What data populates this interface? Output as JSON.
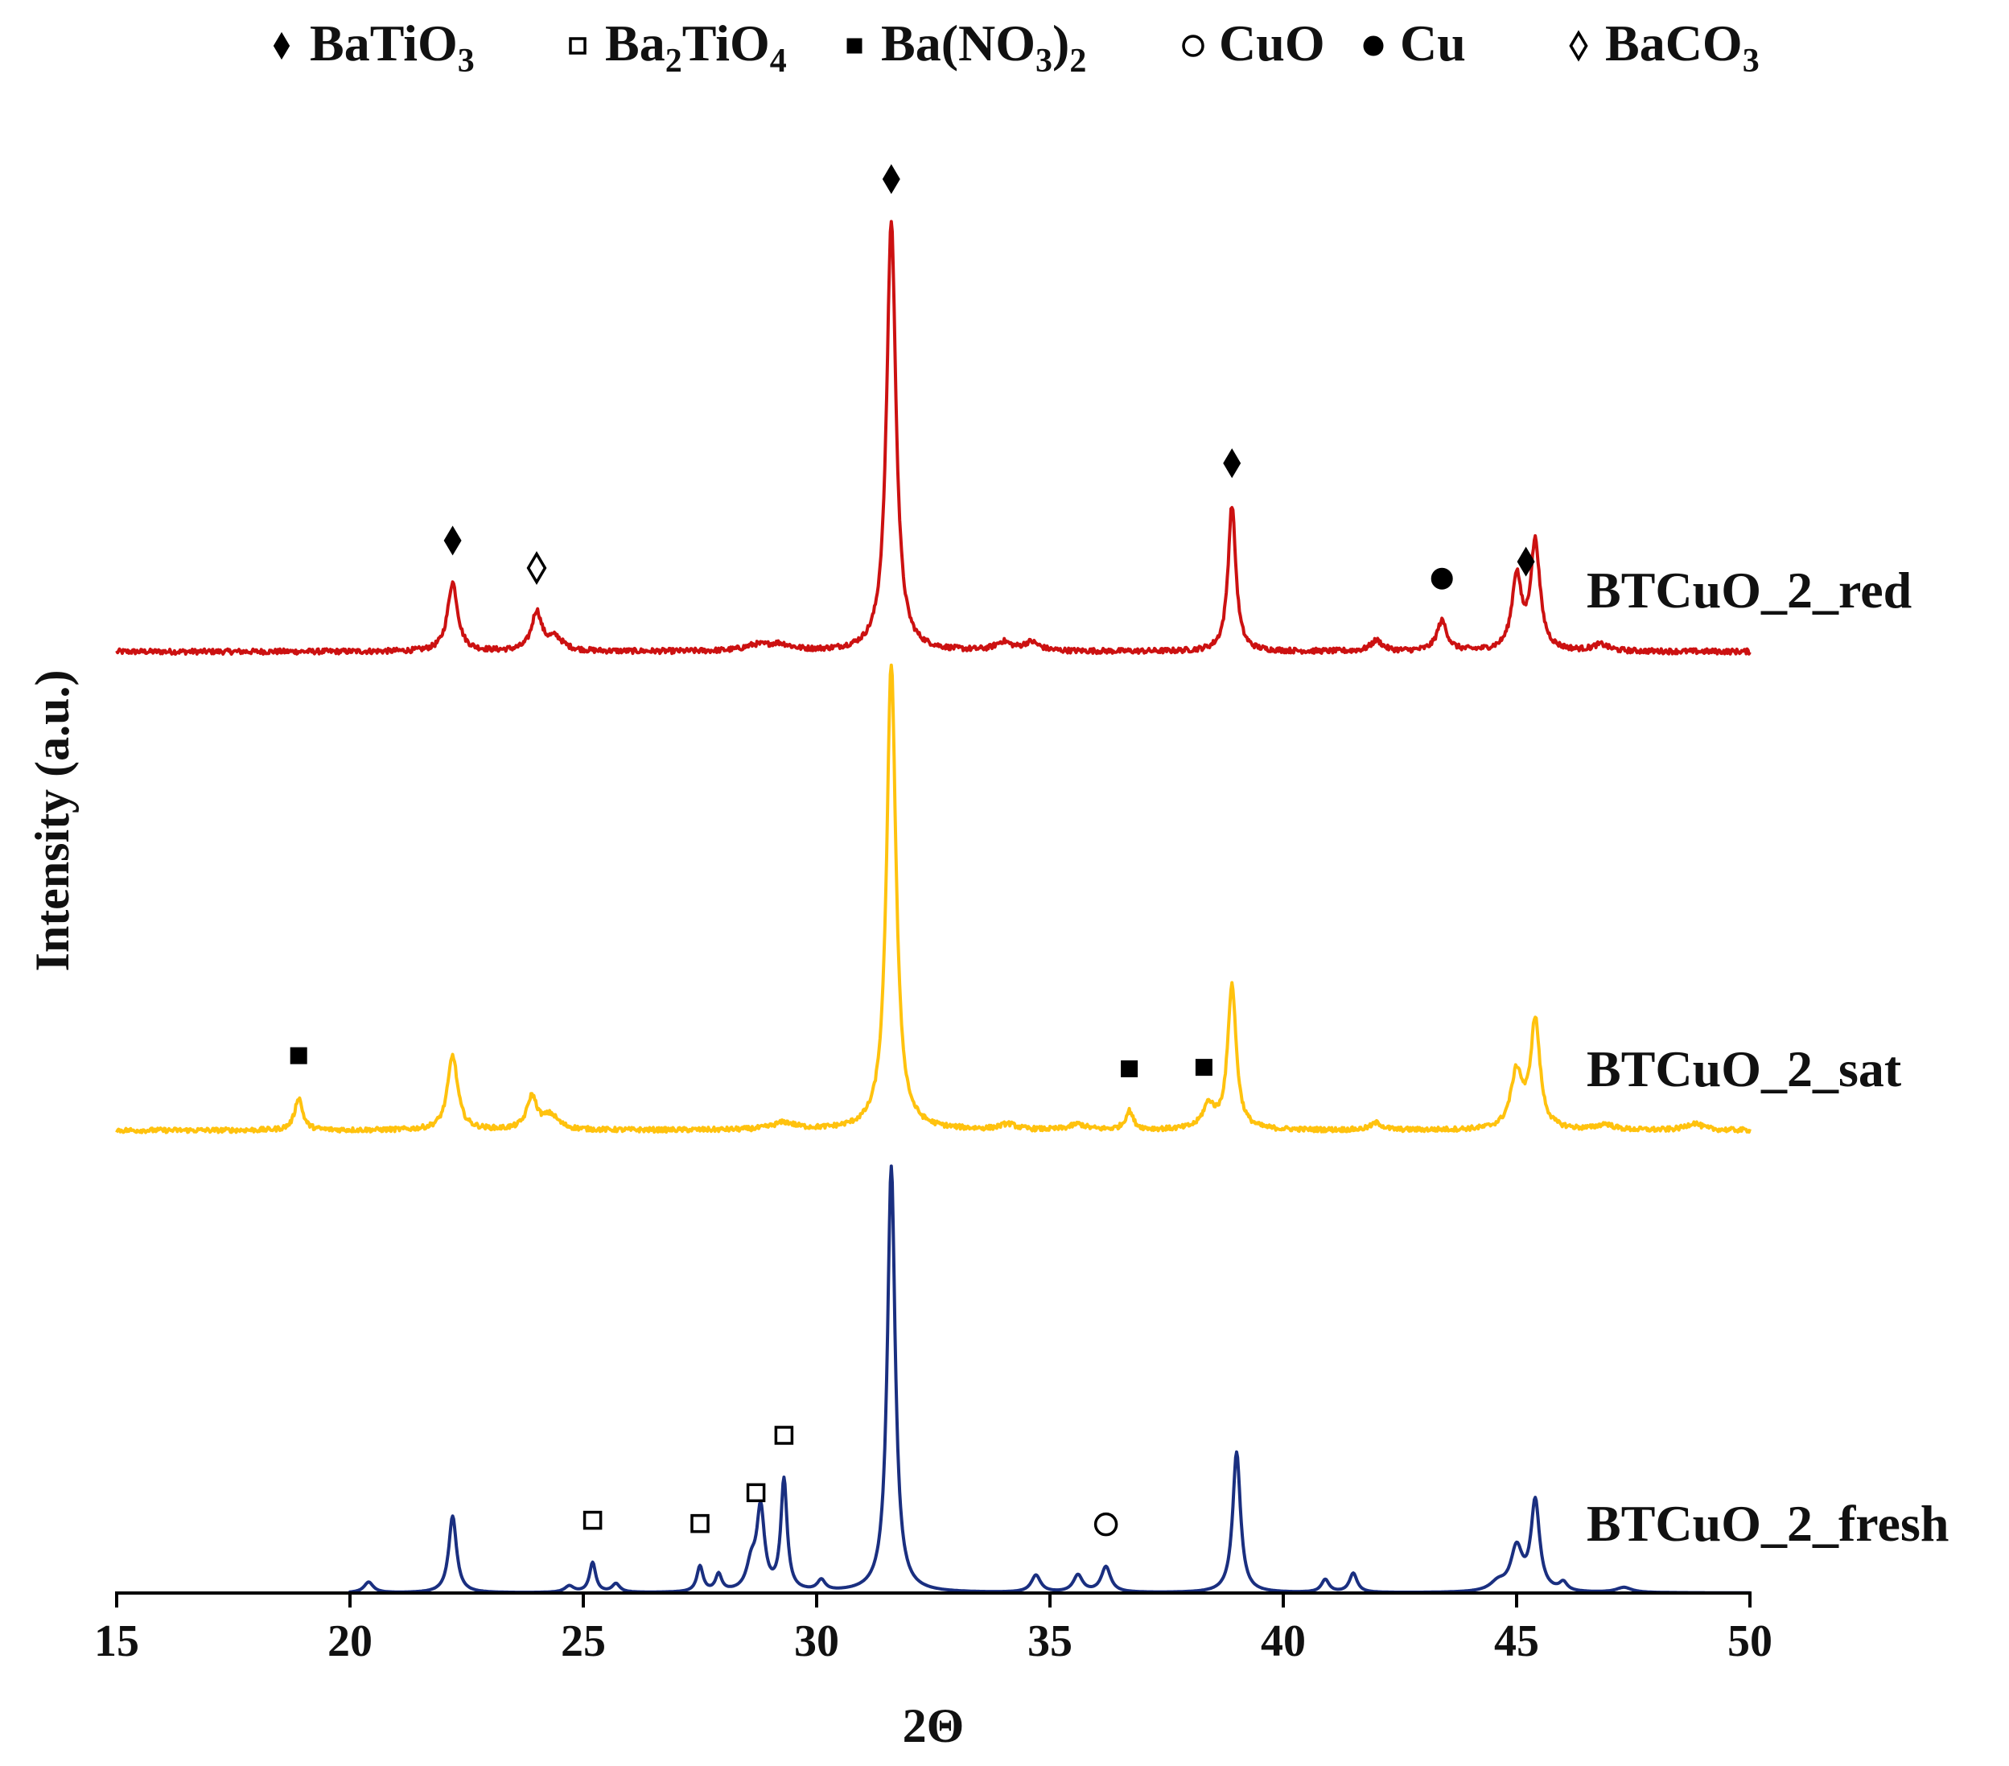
{
  "chart_data": {
    "type": "line",
    "title": "",
    "xlabel": "2Θ",
    "ylabel": "Intensity (a.u.)",
    "xlim": [
      15,
      50
    ],
    "x_ticks": [
      "15",
      "20",
      "25",
      "30",
      "35",
      "40",
      "45",
      "50"
    ],
    "grid": false,
    "y_ticks_shown": false,
    "legend_placement": "top-center",
    "legend": [
      {
        "name": "BaTiO",
        "sub": "3",
        "tail": "",
        "marker": "diamond-filled"
      },
      {
        "name": "Ba",
        "sub": "2",
        "tail": "TiO",
        "sub2": "4",
        "marker": "square-open"
      },
      {
        "name": "Ba(NO",
        "sub": "3",
        "tail": ")",
        "sub2": "2",
        "marker": "square-filled"
      },
      {
        "name": "CuO",
        "sub": "",
        "tail": "",
        "marker": "circle-open"
      },
      {
        "name": "Cu",
        "sub": "",
        "tail": "",
        "marker": "circle-filled"
      },
      {
        "name": "BaCO",
        "sub": "3",
        "tail": "",
        "marker": "diamond-open"
      }
    ],
    "series": [
      {
        "name": "BTCuO_2_red",
        "color": "#cc1111",
        "x_start": 15,
        "baseline": 0,
        "noise": 0.012,
        "peaks": [
          {
            "x": 22.2,
            "h": 0.16,
            "w": 0.13
          },
          {
            "x": 24.0,
            "h": 0.09,
            "w": 0.13
          },
          {
            "x": 24.4,
            "h": 0.03,
            "w": 0.2
          },
          {
            "x": 29.2,
            "h": 0.015,
            "w": 0.3
          },
          {
            "x": 28.7,
            "h": 0.012,
            "w": 0.3
          },
          {
            "x": 31.6,
            "h": 1.0,
            "w": 0.12
          },
          {
            "x": 34.0,
            "h": 0.02,
            "w": 0.2
          },
          {
            "x": 34.6,
            "h": 0.02,
            "w": 0.2
          },
          {
            "x": 38.9,
            "h": 0.34,
            "w": 0.1
          },
          {
            "x": 42.0,
            "h": 0.025,
            "w": 0.15
          },
          {
            "x": 43.4,
            "h": 0.07,
            "w": 0.13
          },
          {
            "x": 45.0,
            "h": 0.17,
            "w": 0.12
          },
          {
            "x": 45.4,
            "h": 0.25,
            "w": 0.12
          },
          {
            "x": 46.8,
            "h": 0.015,
            "w": 0.2
          }
        ],
        "markers": [
          {
            "x": 22.2,
            "marker": "diamond-filled"
          },
          {
            "x": 24.0,
            "marker": "diamond-open"
          },
          {
            "x": 31.6,
            "marker": "diamond-filled"
          },
          {
            "x": 38.9,
            "marker": "diamond-filled"
          },
          {
            "x": 43.4,
            "marker": "circle-filled"
          },
          {
            "x": 45.2,
            "marker": "diamond-filled"
          }
        ]
      },
      {
        "name": "BTCuO_2_sat",
        "color": "#ffc20e",
        "x_start": 15,
        "baseline": 0,
        "noise": 0.01,
        "peaks": [
          {
            "x": 18.9,
            "h": 0.07,
            "w": 0.1
          },
          {
            "x": 22.2,
            "h": 0.16,
            "w": 0.13
          },
          {
            "x": 23.9,
            "h": 0.07,
            "w": 0.13
          },
          {
            "x": 24.3,
            "h": 0.03,
            "w": 0.2
          },
          {
            "x": 29.3,
            "h": 0.015,
            "w": 0.3
          },
          {
            "x": 31.6,
            "h": 1.0,
            "w": 0.12
          },
          {
            "x": 34.1,
            "h": 0.012,
            "w": 0.2
          },
          {
            "x": 35.6,
            "h": 0.012,
            "w": 0.2
          },
          {
            "x": 36.7,
            "h": 0.04,
            "w": 0.1
          },
          {
            "x": 38.4,
            "h": 0.05,
            "w": 0.15
          },
          {
            "x": 38.9,
            "h": 0.31,
            "w": 0.11
          },
          {
            "x": 42.0,
            "h": 0.015,
            "w": 0.15
          },
          {
            "x": 45.0,
            "h": 0.12,
            "w": 0.15
          },
          {
            "x": 45.4,
            "h": 0.23,
            "w": 0.12
          },
          {
            "x": 46.9,
            "h": 0.012,
            "w": 0.2
          },
          {
            "x": 48.8,
            "h": 0.015,
            "w": 0.2
          }
        ],
        "markers": [
          {
            "x": 18.9,
            "marker": "square-filled"
          },
          {
            "x": 36.7,
            "marker": "square-filled"
          },
          {
            "x": 38.3,
            "marker": "square-filled"
          }
        ]
      },
      {
        "name": "BTCuO_2_fresh",
        "color": "#1a2f80",
        "x_start": 20,
        "baseline": 0,
        "noise": 0.0,
        "peaks": [
          {
            "x": 20.4,
            "h": 0.025,
            "w": 0.12
          },
          {
            "x": 22.2,
            "h": 0.18,
            "w": 0.1
          },
          {
            "x": 24.7,
            "h": 0.015,
            "w": 0.12
          },
          {
            "x": 25.2,
            "h": 0.07,
            "w": 0.08
          },
          {
            "x": 25.7,
            "h": 0.02,
            "w": 0.1
          },
          {
            "x": 27.5,
            "h": 0.06,
            "w": 0.08
          },
          {
            "x": 27.9,
            "h": 0.04,
            "w": 0.08
          },
          {
            "x": 28.6,
            "h": 0.06,
            "w": 0.12
          },
          {
            "x": 28.8,
            "h": 0.19,
            "w": 0.1
          },
          {
            "x": 29.3,
            "h": 0.26,
            "w": 0.08
          },
          {
            "x": 30.1,
            "h": 0.025,
            "w": 0.1
          },
          {
            "x": 31.6,
            "h": 1.0,
            "w": 0.1
          },
          {
            "x": 34.7,
            "h": 0.04,
            "w": 0.12
          },
          {
            "x": 35.6,
            "h": 0.04,
            "w": 0.12
          },
          {
            "x": 36.2,
            "h": 0.06,
            "w": 0.12
          },
          {
            "x": 39.0,
            "h": 0.33,
            "w": 0.1
          },
          {
            "x": 40.9,
            "h": 0.03,
            "w": 0.1
          },
          {
            "x": 41.5,
            "h": 0.045,
            "w": 0.1
          },
          {
            "x": 44.6,
            "h": 0.02,
            "w": 0.2
          },
          {
            "x": 45.0,
            "h": 0.1,
            "w": 0.15
          },
          {
            "x": 45.4,
            "h": 0.21,
            "w": 0.11
          },
          {
            "x": 46.0,
            "h": 0.02,
            "w": 0.1
          },
          {
            "x": 47.3,
            "h": 0.012,
            "w": 0.2
          }
        ],
        "markers": [
          {
            "x": 25.2,
            "marker": "square-open"
          },
          {
            "x": 27.5,
            "marker": "square-open"
          },
          {
            "x": 28.7,
            "marker": "square-open"
          },
          {
            "x": 29.3,
            "marker": "square-open"
          },
          {
            "x": 36.2,
            "marker": "circle-open"
          }
        ]
      }
    ]
  }
}
